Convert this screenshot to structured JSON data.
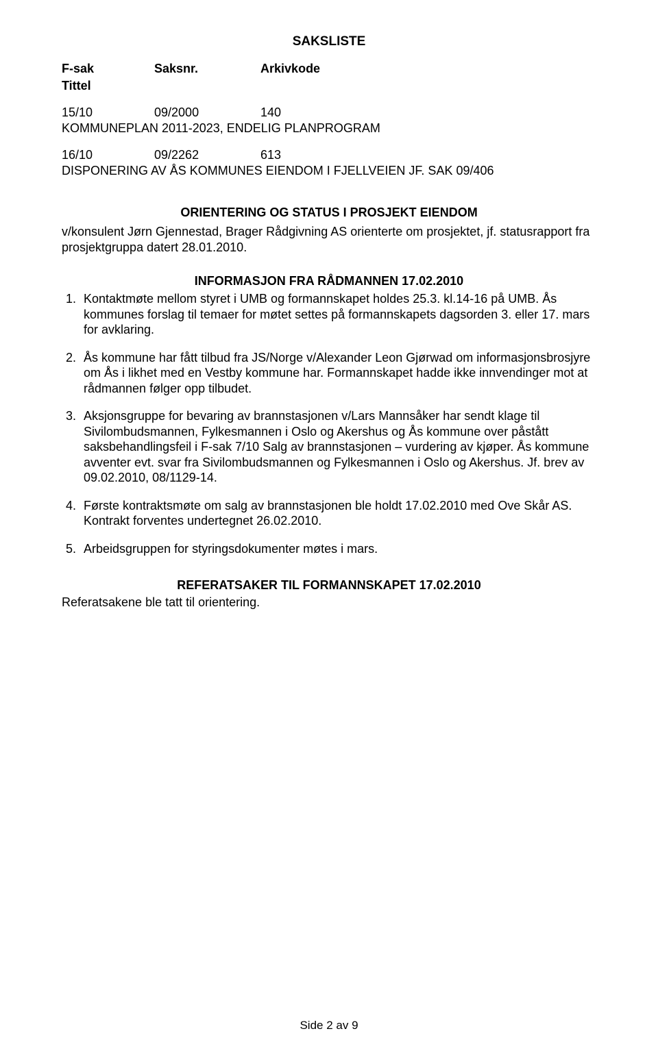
{
  "title": "SAKSLISTE",
  "headers": {
    "fsak": "F-sak",
    "saksnr": "Saksnr.",
    "arkiv": "Arkivkode",
    "tittel": "Tittel"
  },
  "cases": [
    {
      "c1": "15/10",
      "c2": "09/2000",
      "c3": "140",
      "title": "KOMMUNEPLAN 2011-2023, ENDELIG PLANPROGRAM"
    },
    {
      "c1": "16/10",
      "c2": "09/2262",
      "c3": "613",
      "title": "DISPONERING AV ÅS KOMMUNES EIENDOM I FJELLVEIEN JF. SAK 09/406"
    }
  ],
  "orient": {
    "heading": "ORIENTERING OG STATUS I PROSJEKT EIENDOM",
    "text": "v/konsulent Jørn Gjennestad, Brager Rådgivning AS orienterte om prosjektet, jf. statusrapport fra prosjektgruppa datert 28.01.2010."
  },
  "info": {
    "heading": "INFORMASJON FRA RÅDMANNEN 17.02.2010",
    "items": [
      "Kontaktmøte mellom styret i UMB og formannskapet holdes 25.3. kl.14-16 på UMB. Ås kommunes forslag til temaer for møtet settes på formannskapets dagsorden 3. eller 17. mars for avklaring.",
      "Ås kommune har fått tilbud fra JS/Norge v/Alexander Leon Gjørwad om informasjonsbrosjyre om Ås i likhet med en Vestby kommune har. Formannskapet hadde ikke innvendinger mot at rådmannen følger opp tilbudet.",
      "Aksjonsgruppe for bevaring av brannstasjonen v/Lars Mannsåker har sendt klage til Sivilombudsmannen, Fylkesmannen i Oslo og Akershus og Ås kommune over påstått saksbehandlingsfeil i F-sak 7/10 Salg av brannstasjonen – vurdering av kjøper. Ås kommune avventer evt. svar fra Sivilombudsmannen og Fylkesmannen i Oslo og Akershus. Jf. brev av 09.02.2010, 08/1129-14.",
      "Første kontraktsmøte om salg av brannstasjonen ble holdt 17.02.2010 med Ove Skår AS. Kontrakt forventes undertegnet 26.02.2010.",
      "Arbeidsgruppen for styringsdokumenter møtes i mars."
    ]
  },
  "ref": {
    "heading": "REFERATSAKER TIL FORMANNSKAPET 17.02.2010",
    "text": "Referatsakene ble tatt til orientering."
  },
  "footer": "Side 2 av 9"
}
